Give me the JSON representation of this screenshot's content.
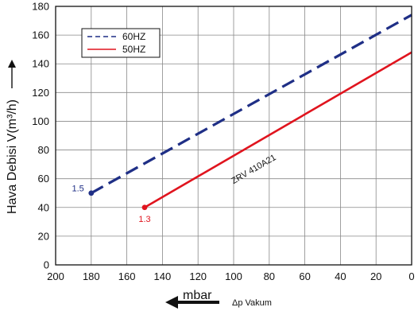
{
  "chart_data": {
    "type": "line",
    "x_unit": "mbar",
    "x_label": "Δp Vakum",
    "y_label": "Hava Debisi V(m³/h)",
    "x_range": [
      200,
      0
    ],
    "y_range": [
      0,
      180
    ],
    "x_ticks": [
      "200",
      "180",
      "160",
      "140",
      "120",
      "100",
      "80",
      "60",
      "40",
      "20",
      "0"
    ],
    "y_ticks": [
      "0",
      "20",
      "40",
      "60",
      "80",
      "100",
      "120",
      "140",
      "160",
      "180"
    ],
    "grid": true,
    "legend_position": "top-left",
    "series": [
      {
        "name": "60HZ",
        "color": "#1f2f86",
        "dash": "dashed",
        "points": [
          [
            180,
            50
          ],
          [
            0,
            174
          ]
        ],
        "start_label": "1.5",
        "start_label_color": "#1f2f86"
      },
      {
        "name": "50HZ",
        "color": "#e0141e",
        "dash": "solid",
        "points": [
          [
            150,
            40
          ],
          [
            0,
            148
          ]
        ],
        "start_label": "1.3",
        "start_label_color": "#e0141e"
      }
    ],
    "annotation": "ZRV 410A21"
  }
}
